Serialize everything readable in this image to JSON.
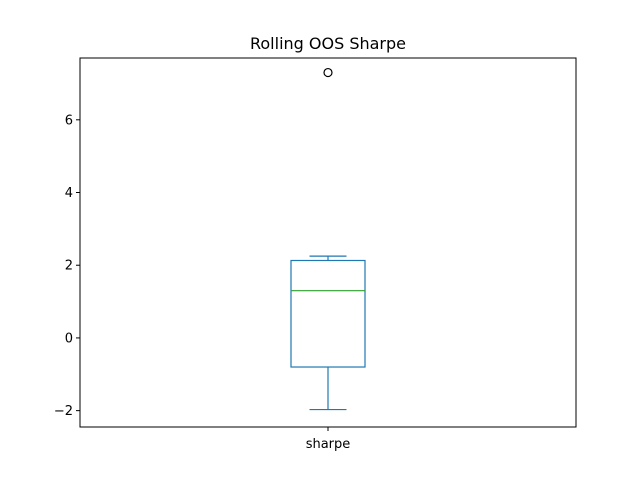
{
  "chart_data": {
    "type": "box",
    "title": "Rolling OOS Sharpe",
    "xlabel": "",
    "ylabel": "",
    "categories": [
      "sharpe"
    ],
    "ylim": [
      -2.45,
      7.7
    ],
    "yticks": [
      -2,
      0,
      2,
      4,
      6
    ],
    "ytick_labels": [
      "−2",
      "0",
      "2",
      "4",
      "6"
    ],
    "grid": false,
    "legend": "none",
    "boxes": [
      {
        "name": "sharpe",
        "whisker_low": -1.97,
        "q1": -0.8,
        "median": 1.3,
        "q3": 2.13,
        "whisker_high": 2.25,
        "outliers": [
          7.3
        ]
      }
    ],
    "colors": {
      "box": "#1f77b4",
      "median": "#2ca02c",
      "outlier": "#000000",
      "axes": "#000000"
    }
  }
}
